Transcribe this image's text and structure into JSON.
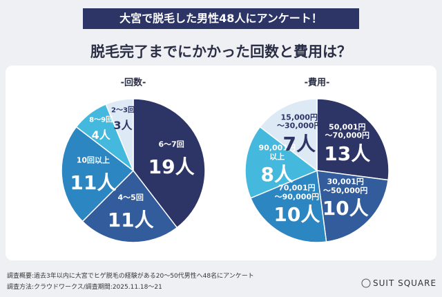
{
  "banner": "大宮で脱毛した男性48人にアンケート！",
  "title": "脱毛完了までにかかった回数と費用は？",
  "chart_data": [
    {
      "type": "pie",
      "title": "-回数-",
      "categories": [
        "6〜7回",
        "4〜5回",
        "10回以上",
        "8〜9回",
        "2〜3回"
      ],
      "values": [
        19,
        11,
        11,
        4,
        3
      ],
      "value_labels": [
        "19人",
        "11人",
        "11人",
        "4人",
        "3人"
      ],
      "colors": [
        "#2d3566",
        "#325c9b",
        "#2b86c1",
        "#45b9dd",
        "#dde9f5"
      ]
    },
    {
      "type": "pie",
      "title": "-費用-",
      "categories": [
        "50,001円\n〜70,000円",
        "30,001円\n〜50,000円",
        "70,001円\n〜90,000円",
        "90,001円\n以上",
        "15,000円\n〜30,000円"
      ],
      "values": [
        13,
        10,
        10,
        8,
        7
      ],
      "value_labels": [
        "13人",
        "10人",
        "10人",
        "8人",
        "7人"
      ],
      "colors": [
        "#2d3566",
        "#325c9b",
        "#2b86c1",
        "#45b9dd",
        "#dde9f5"
      ]
    }
  ],
  "notes": [
    "調査概要:過去3年以内に大宮でヒゲ脱毛の経験がある20〜50代男性へ48名にアンケート",
    "調査方法:クラウドワークス/調査期間:2025.11.18〜21"
  ],
  "logo": "SUIT SQUARE"
}
